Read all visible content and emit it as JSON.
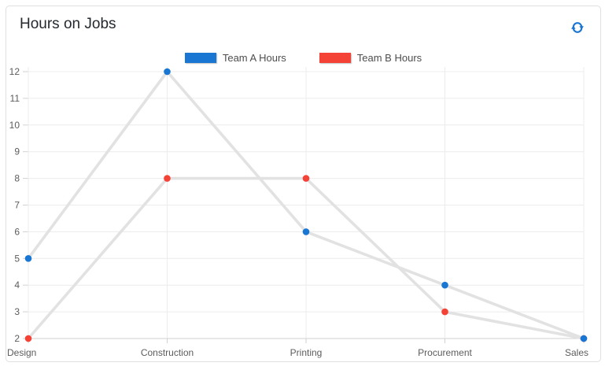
{
  "card": {
    "title": "Hours on Jobs",
    "refresh_icon": "refresh"
  },
  "colors": {
    "accent": "#1976d2",
    "card_border": "#e0e0e0",
    "title_text": "#24292f",
    "legend_text": "#4d4d4d",
    "grid": "#ececec",
    "axis": "#d2d2d2",
    "tick_text": "#5c5c5c",
    "series_line": "#e2e2e2"
  },
  "chart_data": {
    "type": "line",
    "title": "Hours on Jobs",
    "categories": [
      "Design",
      "Construction",
      "Printing",
      "Procurement",
      "Sales"
    ],
    "series": [
      {
        "name": "Team A Hours",
        "color": "#1976d2",
        "values": [
          5,
          12,
          6,
          4,
          2
        ]
      },
      {
        "name": "Team B Hours",
        "color": "#f44336",
        "values": [
          2,
          8,
          8,
          3,
          2
        ]
      }
    ],
    "xlabel": "",
    "ylabel": "",
    "ylim": [
      2,
      12
    ],
    "yticks": [
      2,
      3,
      4,
      5,
      6,
      7,
      8,
      9,
      10,
      11,
      12
    ],
    "grid": true,
    "legend_position": "top-center",
    "marker_style": "filled-circle",
    "connector_style": "light-gray-line"
  }
}
